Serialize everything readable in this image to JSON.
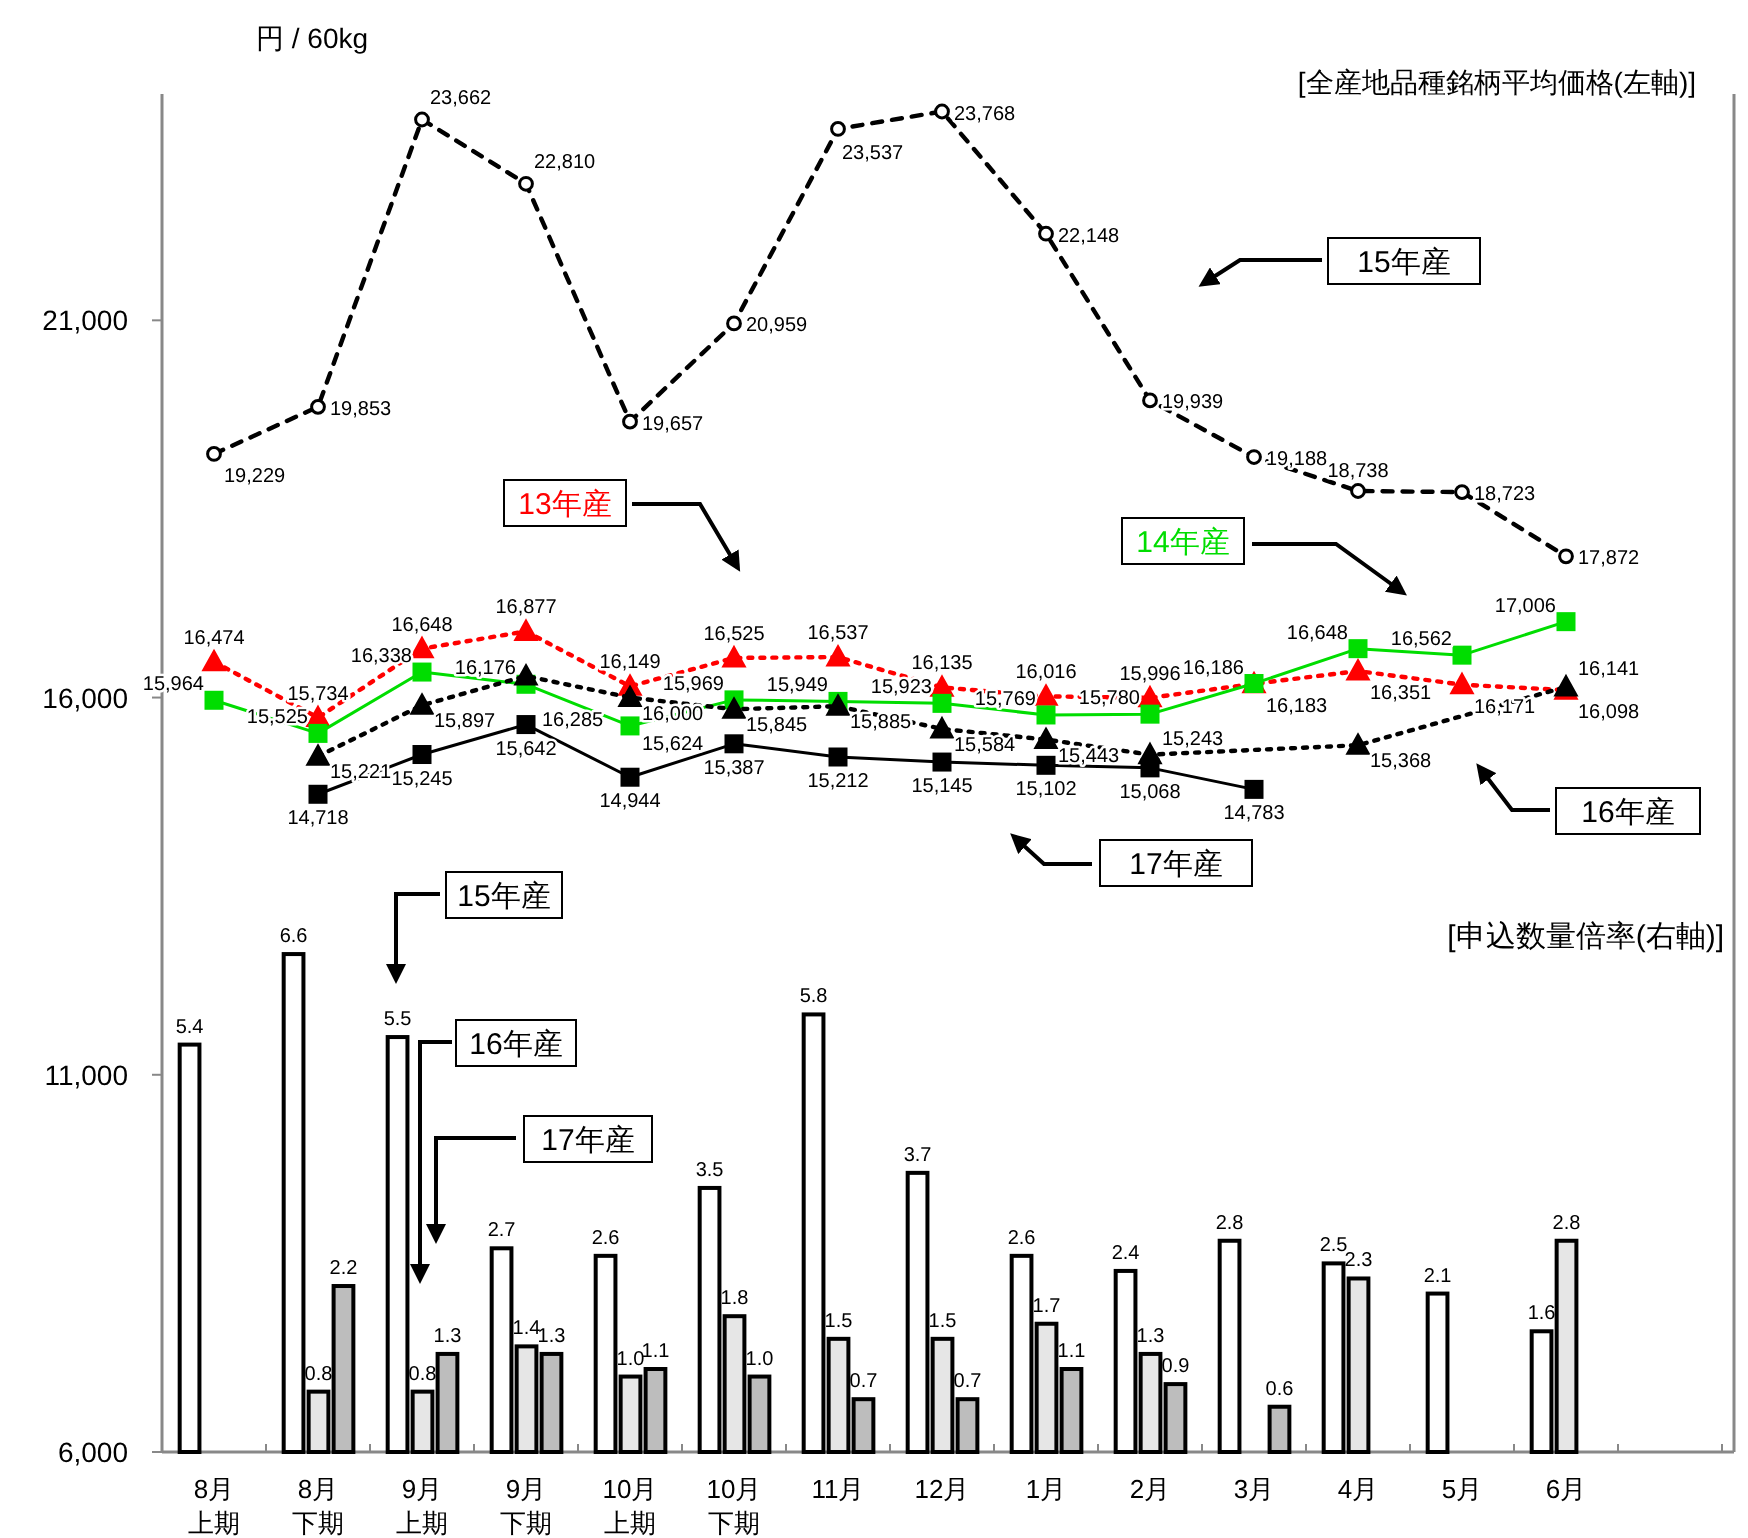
{
  "chart_data": {
    "type": "line",
    "ylabel": "円 / 60kg",
    "y2label": "[申込数量倍率(右軸)]",
    "annotations": [
      "[全産地品種銘柄平均価格(左軸)]"
    ],
    "categories": [
      "8月上期",
      "8月下期",
      "9月上期",
      "9月下期",
      "10月上期",
      "10月下期",
      "11月",
      "12月",
      "1月",
      "2月",
      "3月",
      "4月",
      "5月",
      "6月"
    ],
    "ylim": [
      6000,
      24000
    ],
    "yticks": [
      {
        "value": 6000,
        "label": "6,000"
      },
      {
        "value": 11000,
        "label": "11,000"
      },
      {
        "value": 16000,
        "label": "16,000"
      },
      {
        "value": 21000,
        "label": "21,000"
      }
    ],
    "y2lim": [
      0,
      18
    ],
    "legend": "right",
    "series": [
      {
        "name": "15年産",
        "type": "bar",
        "axis": "y2",
        "color": "#ffffff",
        "values": [
          5.4,
          6.6,
          5.5,
          2.7,
          2.6,
          3.5,
          5.8,
          3.7,
          2.6,
          2.4,
          2.8,
          2.5,
          2.1,
          1.6
        ],
        "value_labels": [
          "5.4",
          "6.6",
          "5.5",
          "2.7",
          "2.6",
          "3.5",
          "5.8",
          "3.7",
          "2.6",
          "2.4",
          "2.8",
          "2.5",
          "2.1",
          "1.6"
        ]
      },
      {
        "name": "16年産",
        "type": "bar",
        "axis": "y2",
        "color": "#e6e6e6",
        "values": [
          null,
          0.8,
          0.8,
          1.4,
          1.0,
          1.8,
          1.5,
          1.5,
          1.7,
          1.3,
          null,
          2.3,
          null,
          2.8
        ],
        "value_labels": [
          null,
          "0.8",
          "0.8",
          "1.4",
          "1.0",
          "1.8",
          "1.5",
          "1.5",
          "1.7",
          "1.3",
          null,
          "2.3",
          null,
          "2.8"
        ]
      },
      {
        "name": "17年産",
        "type": "bar",
        "axis": "y2",
        "color": "#bdbdbd",
        "values": [
          null,
          2.2,
          1.3,
          1.3,
          1.1,
          1.0,
          0.7,
          0.7,
          1.1,
          0.9,
          0.6,
          null,
          null,
          null
        ],
        "value_labels": [
          null,
          "2.2",
          "1.3",
          "1.3",
          "1.1",
          "1.0",
          "0.7",
          "0.7",
          "1.1",
          "0.9",
          "0.6",
          null,
          null,
          null
        ]
      },
      {
        "name": "15年産",
        "color": "#000000",
        "marker": "circle",
        "line_style": "dashed",
        "values": [
          19229,
          19853,
          23662,
          22810,
          19657,
          20959,
          23537,
          23768,
          22148,
          19939,
          19188,
          18738,
          18723,
          17872
        ],
        "value_labels": [
          "19,229",
          "19,853",
          "23,662",
          "22,810",
          "19,657",
          "20,959",
          "23,537",
          "23,768",
          "22,148",
          "19,939",
          "19,188",
          "18,738",
          "18,723",
          "17,872"
        ]
      },
      {
        "name": "13年産",
        "color": "#ff0000",
        "marker": "triangle",
        "line_style": "dotted",
        "values": [
          16474,
          15734,
          16648,
          16877,
          16149,
          16525,
          16537,
          16135,
          16016,
          15996,
          16183,
          16351,
          16171,
          16098
        ],
        "value_labels": [
          "16,474",
          "15,734",
          "16,648",
          "16,877",
          "16,149",
          "16,525",
          "16,537",
          "16,135",
          "16,016",
          "15,996",
          "16,183",
          "16,351",
          "16,171",
          "16,098"
        ]
      },
      {
        "name": "14年産",
        "color": "#00dd00",
        "marker": "square",
        "line_style": "solid",
        "values": [
          15964,
          15525,
          16338,
          16176,
          15624,
          15969,
          15949,
          15923,
          15769,
          15780,
          16186,
          16648,
          16562,
          17006
        ],
        "value_labels": [
          "15,964",
          "15,525",
          "16,338",
          "16,176",
          "15,624",
          "15,969",
          "15,949",
          "15,923",
          "15,769",
          "15,780",
          "16,186",
          "16,648",
          "16,562",
          "17,006"
        ]
      },
      {
        "name": "16年産",
        "color": "#000000",
        "marker": "triangle",
        "line_style": "dotted",
        "values": [
          null,
          15221,
          15897,
          16285,
          16000,
          15845,
          15885,
          15584,
          15443,
          15243,
          null,
          15368,
          null,
          16141
        ],
        "value_labels": [
          null,
          "15,221",
          "15,897",
          "16,285",
          "16,000",
          "15,845",
          "15,885",
          "15,584",
          "15,443",
          "15,243",
          null,
          "15,368",
          null,
          "16,141"
        ]
      },
      {
        "name": "17年産",
        "color": "#000000",
        "marker": "square",
        "line_style": "solid",
        "values": [
          null,
          14718,
          15245,
          15642,
          14944,
          15387,
          15212,
          15145,
          15102,
          15068,
          14783,
          null,
          null,
          null
        ],
        "value_labels": [
          null,
          "14,718",
          "15,245",
          "15,642",
          "14,944",
          "15,387",
          "15,212",
          "15,145",
          "15,102",
          "15,068",
          "14,783",
          null,
          null,
          null
        ]
      }
    ]
  }
}
